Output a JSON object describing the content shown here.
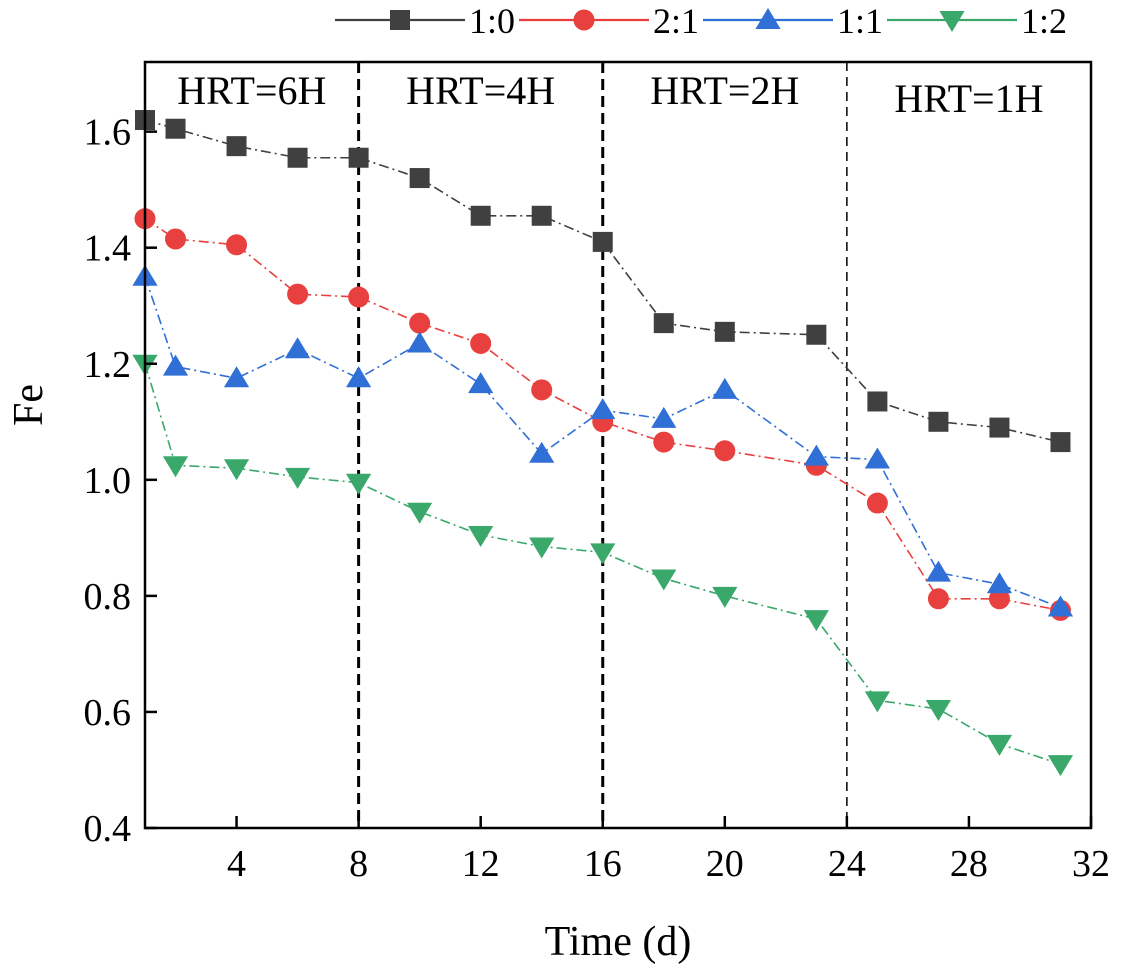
{
  "chart_data": {
    "type": "line",
    "xlabel": "Time (d)",
    "ylabel": "Fe",
    "xlim": [
      1,
      32
    ],
    "ylim": [
      0.4,
      1.72
    ],
    "xticks": [
      4,
      8,
      12,
      16,
      20,
      24,
      28,
      32
    ],
    "yticks": [
      0.4,
      0.6,
      0.8,
      1.0,
      1.2,
      1.4,
      1.6
    ],
    "x_tick_labels": [
      "4",
      "8",
      "12",
      "16",
      "20",
      "24",
      "28",
      "32"
    ],
    "y_tick_labels": [
      "0.4",
      "0.6",
      "0.8",
      "1.0",
      "1.2",
      "1.4",
      "1.6"
    ],
    "legend_position": "top",
    "regions": [
      {
        "label": "HRT=6H",
        "x_start": 1,
        "x_end": 8
      },
      {
        "label": "HRT=4H",
        "x_start": 8,
        "x_end": 16
      },
      {
        "label": "HRT=2H",
        "x_start": 16,
        "x_end": 24
      },
      {
        "label": "HRT=1H",
        "x_start": 24,
        "x_end": 32
      }
    ],
    "region_dividers": [
      8,
      16,
      24
    ],
    "x": [
      1,
      2,
      4,
      6,
      8,
      10,
      12,
      14,
      16,
      18,
      20,
      23,
      25,
      27,
      29,
      31
    ],
    "series": [
      {
        "name": "1:0",
        "color": "#404040",
        "marker": "square",
        "values": [
          1.62,
          1.605,
          1.575,
          1.555,
          1.555,
          1.52,
          1.455,
          1.455,
          1.41,
          1.27,
          1.255,
          1.25,
          1.135,
          1.1,
          1.09,
          1.065
        ]
      },
      {
        "name": "2:1",
        "color": "#e8403f",
        "marker": "circle",
        "values": [
          1.45,
          1.415,
          1.405,
          1.32,
          1.315,
          1.27,
          1.235,
          1.155,
          1.1,
          1.065,
          1.05,
          1.025,
          0.96,
          0.795,
          0.795,
          0.775
        ]
      },
      {
        "name": "1:1",
        "color": "#2f6fd6",
        "marker": "triangle-up",
        "values": [
          1.35,
          1.195,
          1.175,
          1.225,
          1.175,
          1.235,
          1.165,
          1.045,
          1.12,
          1.105,
          1.155,
          1.04,
          1.035,
          0.84,
          0.82,
          0.78
        ]
      },
      {
        "name": "1:2",
        "color": "#3aa86b",
        "marker": "triangle-down",
        "values": [
          1.2,
          1.025,
          1.02,
          1.005,
          0.995,
          0.945,
          0.905,
          0.885,
          0.875,
          0.83,
          0.8,
          0.76,
          0.62,
          0.605,
          0.545,
          0.51
        ]
      }
    ]
  }
}
